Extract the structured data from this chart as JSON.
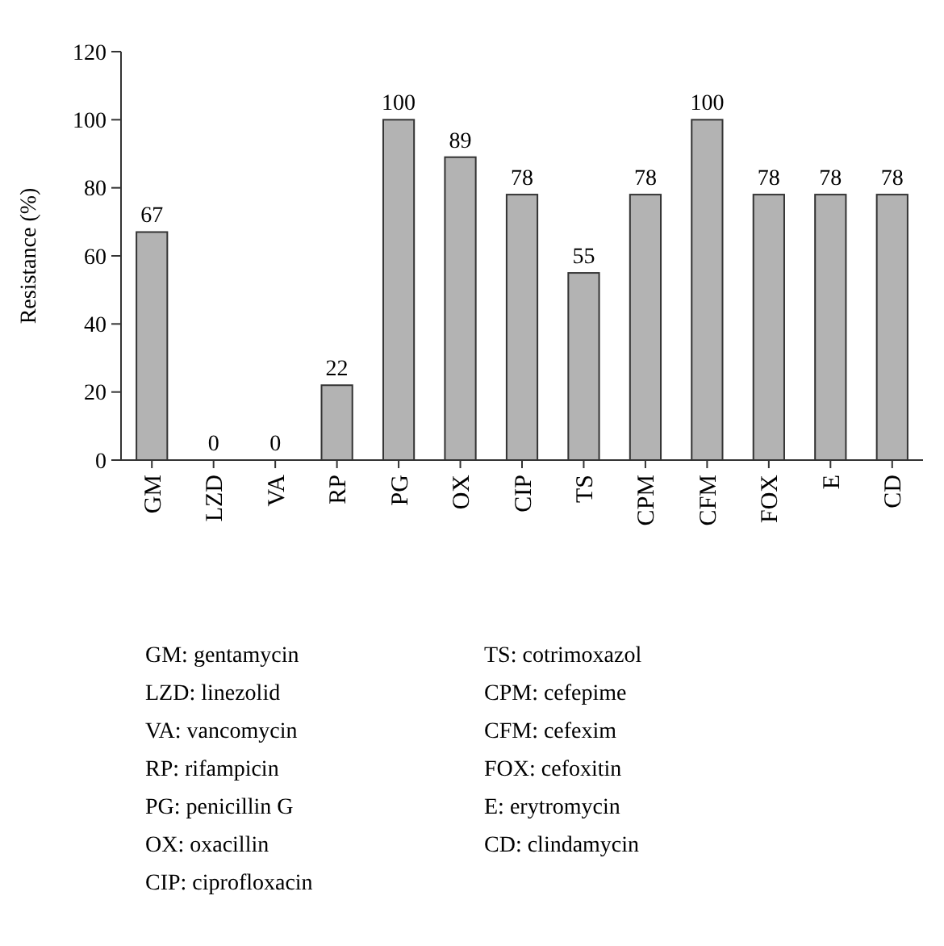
{
  "chart_data": {
    "type": "bar",
    "ylabel": "Resistance (%)",
    "categories": [
      "GM",
      "LZD",
      "VA",
      "RP",
      "PG",
      "OX",
      "CIP",
      "TS",
      "CPM",
      "CFM",
      "FOX",
      "E",
      "CD"
    ],
    "values": [
      67,
      0,
      0,
      22,
      100,
      89,
      78,
      55,
      78,
      100,
      78,
      78,
      78
    ],
    "color": "#b3b3b3",
    "ylim": [
      0,
      120
    ],
    "yticks": [
      0,
      20,
      40,
      60,
      80,
      100,
      120
    ],
    "grid": false,
    "data_labels": true,
    "annotations": [
      "GM: gentamycin",
      "LZD: linezolid",
      "VA: vancomycin",
      "RP: rifampicin",
      "PG: penicillin G",
      "OX: oxacillin",
      "CIP: ciprofloxacin",
      "TS: cotrimoxazol",
      "CPM: cefepime",
      "CFM: cefexim",
      "FOX: cefoxitin",
      "E: erytromycin",
      "CD: clindamycin"
    ]
  }
}
